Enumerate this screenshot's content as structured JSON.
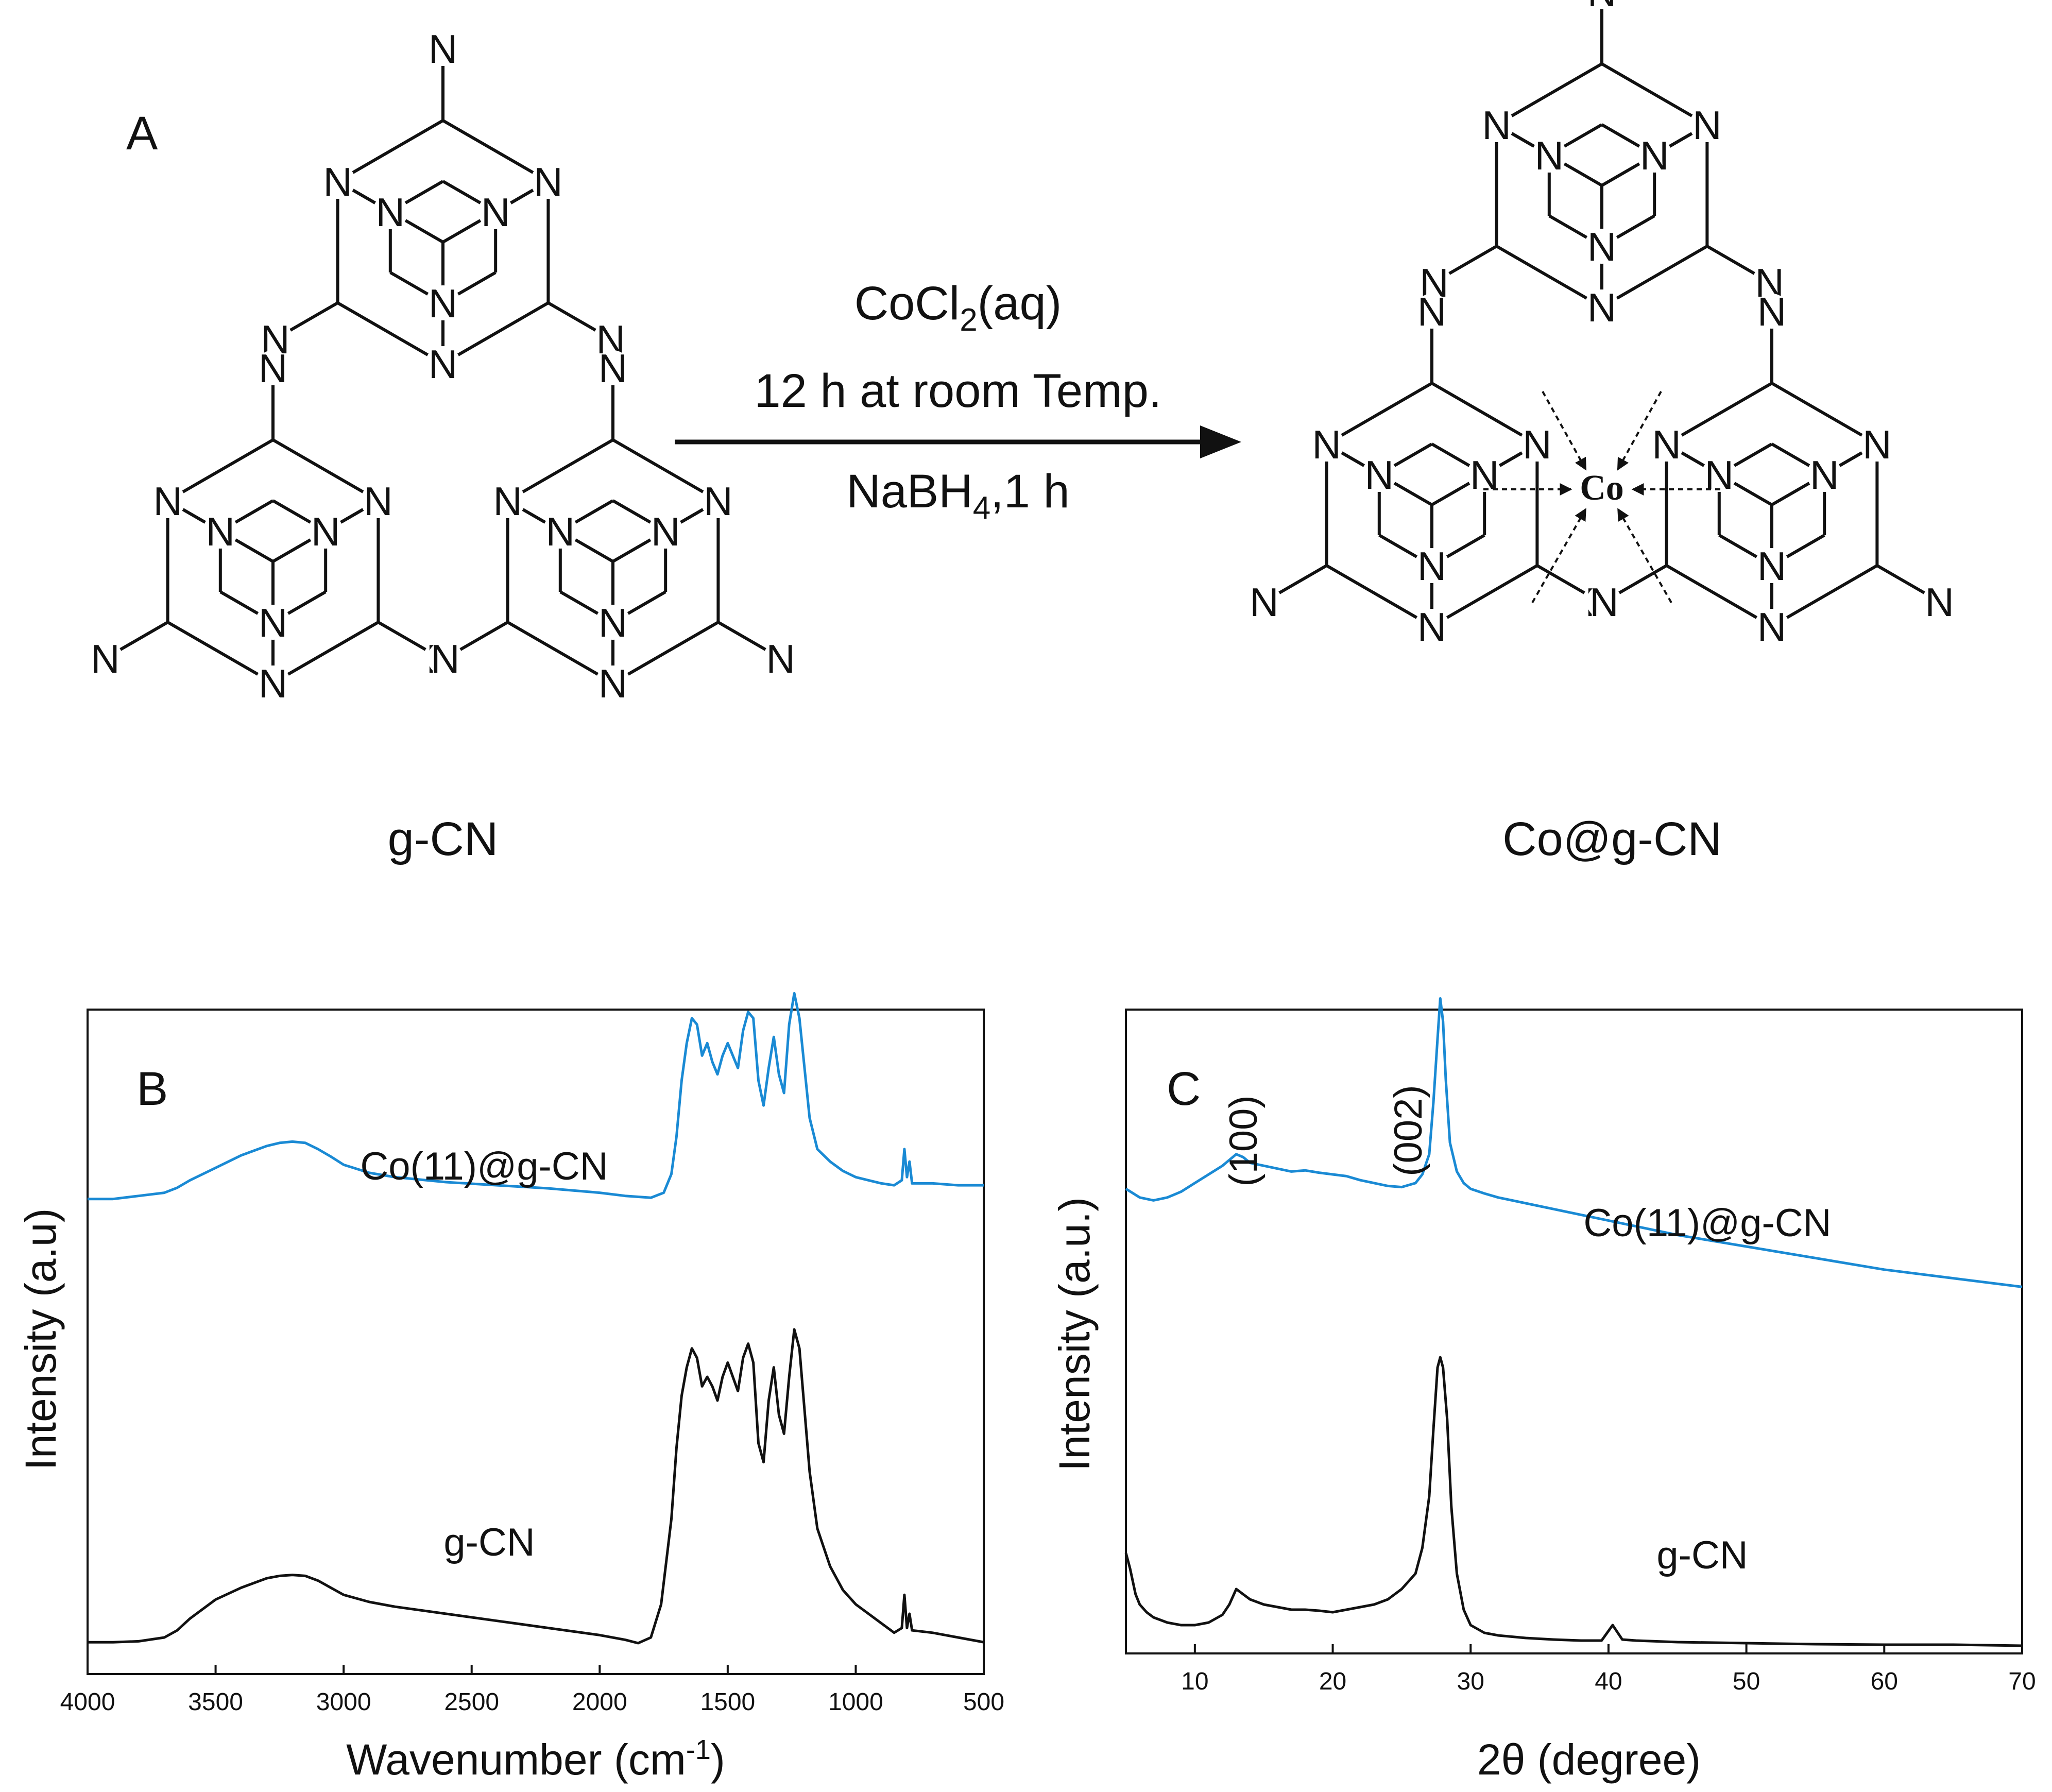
{
  "panel_a": {
    "label": "A",
    "left_caption": "g-CN",
    "right_caption": "Co@g-CN",
    "metal_label": "Co",
    "atom_symbol": "N",
    "reagent_line1": "CoCl",
    "reagent_line1_sub": "2",
    "reagent_line1_tail": "(aq)",
    "reagent_line2": "12 h at room Temp.",
    "reagent_line3": "NaBH",
    "reagent_line3_sub": "4",
    "reagent_line3_tail": ",1 h",
    "colors": {
      "metal": "#ff00ff",
      "structure": "#111111"
    }
  },
  "chart_data": [
    {
      "panel": "B",
      "type": "line",
      "xlabel": "Wavenumber  (cm",
      "xlabel_sup": "-1",
      "xlabel_tail": ")",
      "ylabel": "Intensity  (a.u)",
      "xlim": [
        4000,
        500
      ],
      "x_reversed": true,
      "xticks": [
        "4000",
        "3500",
        "3000",
        "2500",
        "2000",
        "1500",
        "1000",
        "500"
      ],
      "xtick_values": [
        4000,
        3500,
        3000,
        2500,
        2000,
        1500,
        1000,
        500
      ],
      "ylim": [
        0,
        1
      ],
      "series": [
        {
          "name": "Co(11)@g-CN",
          "color": "#1a8ad4",
          "x": [
            4000,
            3900,
            3800,
            3700,
            3650,
            3600,
            3500,
            3400,
            3300,
            3250,
            3200,
            3150,
            3100,
            3050,
            3000,
            2900,
            2800,
            2600,
            2400,
            2200,
            2000,
            1900,
            1800,
            1750,
            1720,
            1700,
            1680,
            1660,
            1640,
            1620,
            1600,
            1580,
            1560,
            1540,
            1520,
            1500,
            1480,
            1460,
            1440,
            1420,
            1400,
            1380,
            1360,
            1340,
            1320,
            1300,
            1280,
            1260,
            1240,
            1220,
            1200,
            1180,
            1150,
            1100,
            1050,
            1000,
            950,
            900,
            850,
            820,
            810,
            800,
            790,
            780,
            700,
            600,
            500
          ],
          "y": [
            0.63,
            0.63,
            0.635,
            0.64,
            0.648,
            0.66,
            0.68,
            0.7,
            0.715,
            0.72,
            0.722,
            0.72,
            0.71,
            0.698,
            0.685,
            0.672,
            0.665,
            0.657,
            0.652,
            0.647,
            0.64,
            0.635,
            0.632,
            0.64,
            0.67,
            0.73,
            0.82,
            0.88,
            0.92,
            0.91,
            0.86,
            0.88,
            0.85,
            0.83,
            0.86,
            0.88,
            0.86,
            0.84,
            0.9,
            0.93,
            0.92,
            0.82,
            0.78,
            0.84,
            0.89,
            0.83,
            0.8,
            0.91,
            0.96,
            0.92,
            0.84,
            0.76,
            0.71,
            0.69,
            0.675,
            0.665,
            0.66,
            0.655,
            0.652,
            0.66,
            0.71,
            0.665,
            0.69,
            0.655,
            0.655,
            0.652,
            0.652
          ]
        },
        {
          "name": "g-CN",
          "color": "#111111",
          "x": [
            4000,
            3900,
            3800,
            3700,
            3650,
            3600,
            3500,
            3400,
            3300,
            3250,
            3200,
            3150,
            3100,
            3050,
            3000,
            2900,
            2800,
            2600,
            2400,
            2200,
            2000,
            1900,
            1850,
            1800,
            1760,
            1720,
            1700,
            1680,
            1660,
            1640,
            1620,
            1600,
            1580,
            1560,
            1540,
            1520,
            1500,
            1480,
            1460,
            1440,
            1420,
            1400,
            1380,
            1360,
            1340,
            1320,
            1300,
            1280,
            1260,
            1240,
            1220,
            1200,
            1180,
            1150,
            1100,
            1050,
            1000,
            950,
            900,
            850,
            820,
            810,
            800,
            790,
            780,
            700,
            600,
            500
          ],
          "y": [
            0.04,
            0.04,
            0.042,
            0.05,
            0.065,
            0.09,
            0.13,
            0.155,
            0.175,
            0.18,
            0.182,
            0.18,
            0.17,
            0.155,
            0.14,
            0.125,
            0.115,
            0.1,
            0.085,
            0.07,
            0.055,
            0.045,
            0.038,
            0.05,
            0.12,
            0.3,
            0.45,
            0.56,
            0.62,
            0.66,
            0.64,
            0.58,
            0.6,
            0.58,
            0.55,
            0.6,
            0.63,
            0.6,
            0.57,
            0.64,
            0.67,
            0.63,
            0.46,
            0.42,
            0.55,
            0.62,
            0.52,
            0.48,
            0.6,
            0.7,
            0.66,
            0.53,
            0.4,
            0.28,
            0.2,
            0.15,
            0.12,
            0.1,
            0.08,
            0.06,
            0.07,
            0.14,
            0.07,
            0.1,
            0.065,
            0.06,
            0.05,
            0.04
          ]
        }
      ],
      "annotations": [
        {
          "text": "B"
        },
        {
          "text": "Co(11)@g-CN",
          "color": "#1a8ad4"
        },
        {
          "text": "g-CN",
          "color": "#111111"
        }
      ]
    },
    {
      "panel": "C",
      "type": "line",
      "xlabel": "2θ (degree)",
      "ylabel": "Intensity  (a.u.)",
      "xlim": [
        5,
        70
      ],
      "xticks": [
        "10",
        "20",
        "30",
        "40",
        "50",
        "60",
        "70"
      ],
      "xtick_values": [
        10,
        20,
        30,
        40,
        50,
        60,
        70
      ],
      "ylim": [
        0,
        1
      ],
      "series": [
        {
          "name": "Co(11)@g-CN",
          "color": "#1a8ad4",
          "x": [
            5,
            6,
            7,
            8,
            9,
            10,
            11,
            12,
            12.5,
            13,
            13.5,
            14,
            15,
            16,
            17,
            18,
            19,
            20,
            21,
            22,
            23,
            24,
            25,
            26,
            26.5,
            27,
            27.3,
            27.6,
            27.8,
            28,
            28.2,
            28.5,
            29,
            29.5,
            30,
            31,
            32,
            34,
            36,
            38,
            40,
            42,
            45,
            50,
            55,
            60,
            65,
            70
          ],
          "y": [
            0.6,
            0.585,
            0.58,
            0.585,
            0.595,
            0.61,
            0.625,
            0.64,
            0.65,
            0.66,
            0.655,
            0.645,
            0.64,
            0.635,
            0.63,
            0.632,
            0.628,
            0.625,
            0.622,
            0.615,
            0.61,
            0.605,
            0.603,
            0.61,
            0.625,
            0.66,
            0.75,
            0.86,
            0.93,
            0.89,
            0.79,
            0.68,
            0.63,
            0.61,
            0.6,
            0.592,
            0.585,
            0.575,
            0.565,
            0.555,
            0.545,
            0.535,
            0.52,
            0.5,
            0.48,
            0.46,
            0.445,
            0.43
          ]
        },
        {
          "name": "g-CN",
          "color": "#111111",
          "x": [
            5,
            5.3,
            5.7,
            6,
            6.5,
            7,
            8,
            9,
            10,
            11,
            12,
            12.5,
            13,
            13.5,
            14,
            15,
            16,
            17,
            18,
            19,
            20,
            21,
            22,
            23,
            24,
            25,
            26,
            26.5,
            27,
            27.3,
            27.6,
            27.8,
            28,
            28.3,
            28.6,
            29,
            29.5,
            30,
            31,
            32,
            34,
            36,
            38,
            39.5,
            40.3,
            41,
            42,
            45,
            50,
            55,
            60,
            65,
            70
          ],
          "y": [
            0.19,
            0.16,
            0.11,
            0.09,
            0.075,
            0.065,
            0.055,
            0.05,
            0.05,
            0.055,
            0.07,
            0.09,
            0.12,
            0.11,
            0.1,
            0.09,
            0.085,
            0.08,
            0.08,
            0.078,
            0.075,
            0.08,
            0.085,
            0.09,
            0.1,
            0.12,
            0.15,
            0.2,
            0.3,
            0.43,
            0.55,
            0.57,
            0.55,
            0.45,
            0.28,
            0.15,
            0.08,
            0.05,
            0.035,
            0.03,
            0.025,
            0.022,
            0.02,
            0.02,
            0.05,
            0.022,
            0.02,
            0.017,
            0.015,
            0.013,
            0.012,
            0.012,
            0.01
          ]
        }
      ],
      "annotations": [
        {
          "text": "C"
        },
        {
          "text": "(100)",
          "color": "#1a8ad4"
        },
        {
          "text": "(002)",
          "color": "#1a8ad4"
        },
        {
          "text": "Co(11)@g-CN",
          "color": "#1a8ad4"
        },
        {
          "text": "g-CN",
          "color": "#111111"
        }
      ]
    }
  ]
}
